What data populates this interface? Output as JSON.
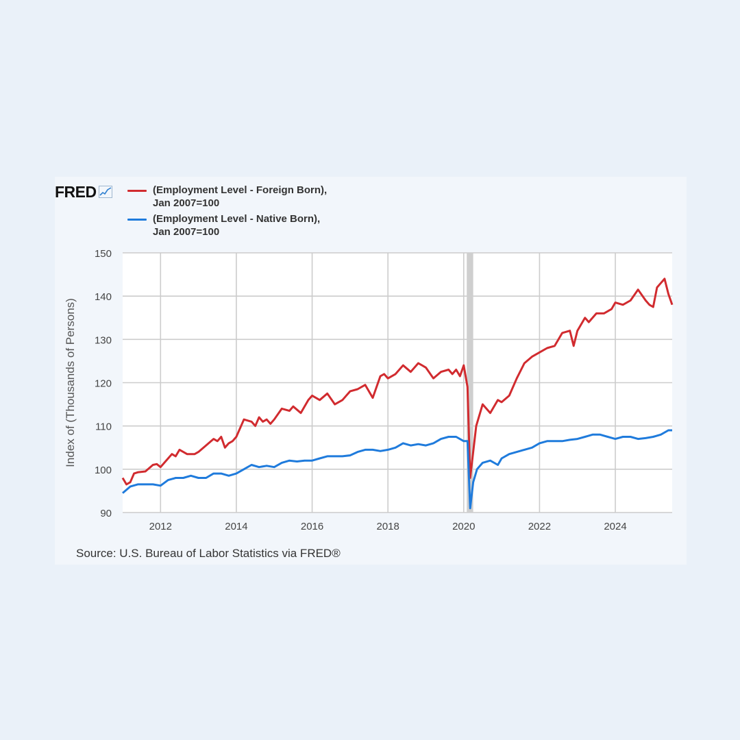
{
  "logo": {
    "text": "FRED",
    "icon": "chart-line-icon"
  },
  "legend": [
    {
      "line1": "(Employment Level - Foreign Born),",
      "line2": "Jan 2007=100",
      "color": "#d12b2f"
    },
    {
      "line1": "(Employment Level - Native Born),",
      "line2": "Jan 2007=100",
      "color": "#1f7bdc"
    }
  ],
  "source": "Source: U.S. Bureau of Labor Statistics via FRED®",
  "chart_data": {
    "type": "line",
    "ylabel": "Index of (Thousands of Persons)",
    "xlabel": "",
    "ylim": [
      90,
      150
    ],
    "xlim": [
      2011.0,
      2025.5
    ],
    "yticks": [
      90,
      100,
      110,
      120,
      130,
      140,
      150
    ],
    "xticks": [
      2012,
      2014,
      2016,
      2018,
      2020,
      2022,
      2024
    ],
    "grid": true,
    "recession_shading": {
      "start": 2020.08,
      "end": 2020.25,
      "color": "#cfcfcf"
    },
    "series": [
      {
        "name": "(Employment Level - Foreign Born), Jan 2007=100",
        "color": "#d12b2f",
        "x": [
          2011.0,
          2011.1,
          2011.2,
          2011.3,
          2011.4,
          2011.6,
          2011.8,
          2011.9,
          2012.0,
          2012.1,
          2012.2,
          2012.3,
          2012.4,
          2012.5,
          2012.7,
          2012.9,
          2013.0,
          2013.2,
          2013.4,
          2013.5,
          2013.6,
          2013.7,
          2013.8,
          2013.9,
          2014.0,
          2014.2,
          2014.4,
          2014.5,
          2014.6,
          2014.7,
          2014.8,
          2014.9,
          2015.0,
          2015.2,
          2015.4,
          2015.5,
          2015.7,
          2015.9,
          2016.0,
          2016.2,
          2016.4,
          2016.6,
          2016.8,
          2017.0,
          2017.2,
          2017.4,
          2017.6,
          2017.8,
          2017.9,
          2018.0,
          2018.2,
          2018.4,
          2018.6,
          2018.8,
          2018.9,
          2019.0,
          2019.2,
          2019.4,
          2019.6,
          2019.7,
          2019.8,
          2019.9,
          2020.0,
          2020.1,
          2020.17,
          2020.25,
          2020.33,
          2020.5,
          2020.7,
          2020.9,
          2021.0,
          2021.2,
          2021.4,
          2021.6,
          2021.8,
          2022.0,
          2022.2,
          2022.4,
          2022.6,
          2022.8,
          2022.9,
          2023.0,
          2023.2,
          2023.3,
          2023.5,
          2023.7,
          2023.9,
          2024.0,
          2024.2,
          2024.4,
          2024.6,
          2024.8,
          2024.9,
          2025.0,
          2025.1,
          2025.2,
          2025.3,
          2025.4,
          2025.5
        ],
        "values": [
          98,
          96.5,
          97,
          99,
          99.3,
          99.5,
          101,
          101.2,
          100.5,
          101.5,
          102.5,
          103.5,
          103,
          104.5,
          103.5,
          103.5,
          104,
          105.5,
          107,
          106.5,
          107.5,
          105,
          106,
          106.5,
          107.5,
          111.5,
          111,
          110,
          112,
          111,
          111.5,
          110.5,
          111.5,
          114,
          113.5,
          114.5,
          113,
          116,
          117,
          116,
          117.5,
          115,
          116,
          118,
          118.5,
          119.5,
          116.5,
          121.5,
          122,
          121,
          122,
          124,
          122.5,
          124.5,
          124,
          123.5,
          121,
          122.5,
          123,
          122,
          123,
          121.5,
          124,
          119,
          98,
          104,
          110,
          115,
          113,
          116,
          115.5,
          117,
          121,
          124.5,
          126,
          127,
          128,
          128.5,
          131.5,
          132,
          128.5,
          132,
          135,
          134,
          136,
          136,
          137,
          138.5,
          138,
          139,
          141.5,
          139,
          138,
          137.5,
          142,
          143,
          144,
          140.5,
          138
        ]
      },
      {
        "name": "(Employment Level - Native Born), Jan 2007=100",
        "color": "#1f7bdc",
        "x": [
          2011.0,
          2011.2,
          2011.4,
          2011.6,
          2011.8,
          2012.0,
          2012.2,
          2012.4,
          2012.6,
          2012.8,
          2013.0,
          2013.2,
          2013.4,
          2013.6,
          2013.8,
          2014.0,
          2014.2,
          2014.4,
          2014.6,
          2014.8,
          2015.0,
          2015.2,
          2015.4,
          2015.6,
          2015.8,
          2016.0,
          2016.2,
          2016.4,
          2016.6,
          2016.8,
          2017.0,
          2017.2,
          2017.4,
          2017.6,
          2017.8,
          2018.0,
          2018.2,
          2018.4,
          2018.6,
          2018.8,
          2019.0,
          2019.2,
          2019.4,
          2019.6,
          2019.8,
          2020.0,
          2020.1,
          2020.17,
          2020.25,
          2020.35,
          2020.5,
          2020.7,
          2020.9,
          2021.0,
          2021.2,
          2021.4,
          2021.6,
          2021.8,
          2022.0,
          2022.2,
          2022.4,
          2022.6,
          2022.8,
          2023.0,
          2023.2,
          2023.4,
          2023.6,
          2023.8,
          2024.0,
          2024.2,
          2024.4,
          2024.6,
          2024.8,
          2025.0,
          2025.2,
          2025.4,
          2025.5
        ],
        "values": [
          94.5,
          96,
          96.5,
          96.5,
          96.5,
          96.2,
          97.5,
          98,
          98,
          98.5,
          98,
          98,
          99,
          99,
          98.5,
          99,
          100,
          101,
          100.5,
          100.8,
          100.5,
          101.5,
          102,
          101.8,
          102,
          102,
          102.5,
          103,
          103,
          103,
          103.2,
          104,
          104.5,
          104.5,
          104.2,
          104.5,
          105,
          106,
          105.5,
          105.8,
          105.5,
          106,
          107,
          107.5,
          107.5,
          106.5,
          106.5,
          91,
          97,
          100,
          101.5,
          102,
          101,
          102.5,
          103.5,
          104,
          104.5,
          105,
          106,
          106.5,
          106.5,
          106.5,
          106.8,
          107,
          107.5,
          108,
          108,
          107.5,
          107,
          107.5,
          107.5,
          107,
          107.2,
          107.5,
          108,
          109,
          109
        ]
      }
    ]
  }
}
